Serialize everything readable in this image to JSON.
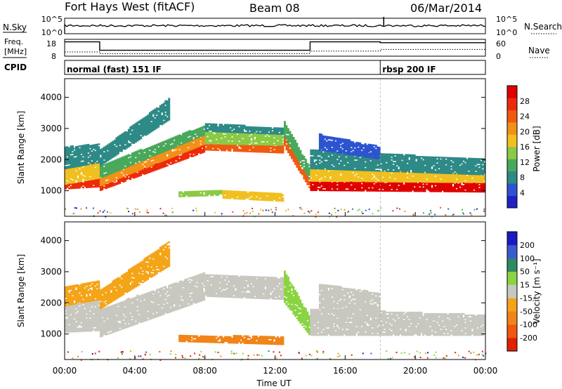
{
  "header": {
    "station": "Fort Hays West (fitACF)",
    "beam": "Beam 08",
    "date": "06/Mar/2014"
  },
  "strips": {
    "nsky_label": "N.Sky",
    "nsearch_label": "N.Search",
    "nsky_ticks": [
      "10^5",
      "10^0"
    ],
    "nsearch_ticks": [
      "10^5",
      "10^0"
    ],
    "freq_label_1": "Freq.",
    "freq_label_2": "[MHz]",
    "freq_ticks": [
      "18",
      "8"
    ],
    "nave_label": "Nave",
    "nave_ticks": [
      "60",
      "0"
    ],
    "cpid_label": "CPID",
    "cpid_segments": [
      {
        "start_hour": 0,
        "text": "normal (fast) 151 IF"
      },
      {
        "start_hour": 18,
        "text": "rbsp 200 IF"
      }
    ],
    "freq_steps": [
      {
        "from_hour": 0,
        "to_hour": 2,
        "level": 0.85
      },
      {
        "from_hour": 2,
        "to_hour": 14,
        "level": 0.35
      },
      {
        "from_hour": 14,
        "to_hour": 18,
        "level": 0.85
      },
      {
        "from_hour": 18,
        "to_hour": 24,
        "level": 0.8
      }
    ],
    "nave_steps": [
      {
        "from_hour": 0,
        "to_hour": 2,
        "level": 0.25
      },
      {
        "from_hour": 2,
        "to_hour": 14,
        "level": 0.15
      },
      {
        "from_hour": 14,
        "to_hour": 18,
        "level": 0.3
      },
      {
        "from_hour": 18,
        "to_hour": 24,
        "level": 0.4
      }
    ]
  },
  "colors": {
    "power": [
      "#1e22c8",
      "#2d54d0",
      "#2e8a86",
      "#4aa85c",
      "#8cca46",
      "#f0c020",
      "#f39018",
      "#f05a10",
      "#ee2a0a",
      "#e00000"
    ],
    "velocity_pos": [
      "#1a1ac2",
      "#3a5ad0",
      "#2e8a62",
      "#8ad442"
    ],
    "velocity_ground": "#c8c8c0",
    "velocity_neg": [
      "#f4a418",
      "#f08418",
      "#ee5810",
      "#e02000"
    ]
  },
  "colorbars": {
    "power": {
      "label": "Power [dB]",
      "ticks": [
        "28",
        "24",
        "20",
        "16",
        "12",
        "8",
        "4"
      ]
    },
    "velocity": {
      "label": "Velocity [m s⁻¹]",
      "ticks": [
        "200",
        "100",
        "50",
        "15",
        "-15",
        "-50",
        "-100",
        "-200"
      ]
    }
  },
  "chart_data": [
    {
      "type": "heatmap",
      "name": "power",
      "ylabel": "Slant Range [km]",
      "yticks": [
        1000,
        2000,
        3000,
        4000
      ],
      "ylim": [
        180,
        4600
      ],
      "xlim": [
        0,
        24
      ],
      "colorbar": "Power [dB]",
      "regions": [
        {
          "t0": 0.0,
          "t1": 2.0,
          "r0": 1050,
          "r1": 1200,
          "r0b": 1120,
          "r1b": 1400,
          "level": 8
        },
        {
          "t0": 0.0,
          "t1": 2.0,
          "r0": 1200,
          "r1": 1700,
          "r0b": 1400,
          "r1b": 1900,
          "level": 5
        },
        {
          "t0": 0.0,
          "t1": 2.0,
          "r0": 1700,
          "r1": 2400,
          "r0b": 1900,
          "r1b": 2500,
          "level": 2
        },
        {
          "t0": 2.0,
          "t1": 8.0,
          "r0": 1000,
          "r1": 1150,
          "r0b": 2250,
          "r1b": 2500,
          "level": 8
        },
        {
          "t0": 2.0,
          "t1": 8.0,
          "r0": 1150,
          "r1": 1400,
          "r0b": 2500,
          "r1b": 2800,
          "level": 6
        },
        {
          "t0": 2.0,
          "t1": 8.0,
          "r0": 1400,
          "r1": 1800,
          "r0b": 2800,
          "r1b": 3100,
          "level": 3
        },
        {
          "t0": 2.0,
          "t1": 6.0,
          "r0": 1800,
          "r1": 2300,
          "r0b": 3300,
          "r1b": 4000,
          "level": 2
        },
        {
          "t0": 8.0,
          "t1": 12.5,
          "r0": 2300,
          "r1": 2500,
          "r0b": 2200,
          "r1b": 2450,
          "level": 7
        },
        {
          "t0": 8.0,
          "t1": 12.5,
          "r0": 2500,
          "r1": 2900,
          "r0b": 2450,
          "r1b": 2800,
          "level": 4
        },
        {
          "t0": 8.0,
          "t1": 12.5,
          "r0": 2900,
          "r1": 3150,
          "r0b": 2800,
          "r1b": 3000,
          "level": 2
        },
        {
          "t0": 6.5,
          "t1": 9.0,
          "r0": 800,
          "r1": 950,
          "r0b": 850,
          "r1b": 1000,
          "level": 4
        },
        {
          "t0": 9.0,
          "t1": 12.5,
          "r0": 750,
          "r1": 1000,
          "r0b": 650,
          "r1b": 900,
          "level": 5
        },
        {
          "t0": 12.5,
          "t1": 14.0,
          "r0": 2400,
          "r1": 2700,
          "r0b": 1000,
          "r1b": 1300,
          "level": 7
        },
        {
          "t0": 12.5,
          "t1": 14.0,
          "r0": 2700,
          "r1": 3200,
          "r0b": 1300,
          "r1b": 1700,
          "level": 3
        },
        {
          "t0": 14.0,
          "t1": 24.0,
          "r0": 1000,
          "r1": 1300,
          "r0b": 950,
          "r1b": 1250,
          "level": 9
        },
        {
          "t0": 14.0,
          "t1": 24.0,
          "r0": 1300,
          "r1": 1700,
          "r0b": 1250,
          "r1b": 1500,
          "level": 5
        },
        {
          "t0": 14.0,
          "t1": 24.0,
          "r0": 1700,
          "r1": 2300,
          "r0b": 1500,
          "r1b": 2000,
          "level": 2
        },
        {
          "t0": 14.5,
          "t1": 18.0,
          "r0": 2300,
          "r1": 2800,
          "r0b": 2000,
          "r1b": 2400,
          "level": 1
        }
      ]
    },
    {
      "type": "heatmap",
      "name": "velocity",
      "ylabel": "Slant Range [km]",
      "yticks": [
        1000,
        2000,
        3000,
        4000
      ],
      "ylim": [
        180,
        4600
      ],
      "xlim": [
        0,
        24
      ],
      "xlabel": "Time UT",
      "xticks": [
        "00:00",
        "04:00",
        "08:00",
        "12:00",
        "16:00",
        "20:00",
        "00:00"
      ],
      "colorbar": "Velocity [m s⁻¹]",
      "regions": [
        {
          "t0": 0.0,
          "t1": 2.0,
          "r0": 1050,
          "r1": 1900,
          "r0b": 1100,
          "r1b": 2100,
          "kind": "ground"
        },
        {
          "t0": 0.0,
          "t1": 2.0,
          "r0": 1900,
          "r1": 2500,
          "r0b": 2100,
          "r1b": 2700,
          "kind": "neg",
          "level": 0
        },
        {
          "t0": 2.0,
          "t1": 8.0,
          "r0": 900,
          "r1": 1800,
          "r0b": 2100,
          "r1b": 3000,
          "kind": "ground"
        },
        {
          "t0": 2.0,
          "t1": 6.0,
          "r0": 1800,
          "r1": 2400,
          "r0b": 3200,
          "r1b": 4000,
          "kind": "neg",
          "level": 0
        },
        {
          "t0": 8.0,
          "t1": 12.5,
          "r0": 2200,
          "r1": 2900,
          "r0b": 2100,
          "r1b": 2800,
          "kind": "ground"
        },
        {
          "t0": 6.5,
          "t1": 12.5,
          "r0": 750,
          "r1": 950,
          "r0b": 650,
          "r1b": 900,
          "kind": "neg",
          "level": 1
        },
        {
          "t0": 12.5,
          "t1": 14.0,
          "r0": 2000,
          "r1": 3000,
          "r0b": 900,
          "r1b": 1500,
          "kind": "pos",
          "level": 3
        },
        {
          "t0": 14.0,
          "t1": 24.0,
          "r0": 950,
          "r1": 1800,
          "r0b": 950,
          "r1b": 1600,
          "kind": "ground"
        },
        {
          "t0": 14.5,
          "t1": 18.0,
          "r0": 1800,
          "r1": 2600,
          "r0b": 1600,
          "r1b": 2300,
          "kind": "ground"
        }
      ]
    }
  ]
}
